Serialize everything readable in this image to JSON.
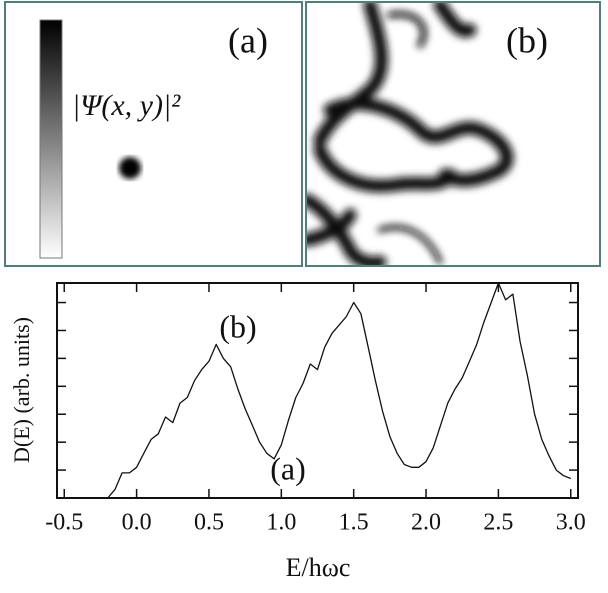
{
  "panels": {
    "a_label": "(a)",
    "b_label": "(b)",
    "colorbar_label": "|Ψ(x, y)|²"
  },
  "chart_data": {
    "type": "line",
    "xlabel": "E/hωc",
    "ylabel": "D(E) (arb. units)",
    "annotations": [
      "(a)",
      "(b)"
    ],
    "x": [
      -0.2,
      -0.15,
      -0.1,
      -0.05,
      0.0,
      0.05,
      0.1,
      0.15,
      0.2,
      0.25,
      0.3,
      0.35,
      0.4,
      0.45,
      0.5,
      0.55,
      0.6,
      0.65,
      0.7,
      0.75,
      0.8,
      0.85,
      0.9,
      0.95,
      1.0,
      1.05,
      1.1,
      1.15,
      1.2,
      1.25,
      1.3,
      1.35,
      1.4,
      1.45,
      1.5,
      1.55,
      1.6,
      1.65,
      1.7,
      1.75,
      1.8,
      1.85,
      1.9,
      1.95,
      2.0,
      2.05,
      2.1,
      2.15,
      2.2,
      2.25,
      2.3,
      2.35,
      2.4,
      2.45,
      2.5,
      2.55,
      2.6,
      2.65,
      2.7,
      2.75,
      2.8,
      2.85,
      2.9,
      2.95,
      3.0
    ],
    "values": [
      0.0,
      0.3,
      0.9,
      0.9,
      1.1,
      1.6,
      2.1,
      2.3,
      2.9,
      2.7,
      3.4,
      3.6,
      4.2,
      4.6,
      4.9,
      5.5,
      5.0,
      4.7,
      3.9,
      3.2,
      2.6,
      2.0,
      1.6,
      1.4,
      1.9,
      2.8,
      3.6,
      4.1,
      4.8,
      4.6,
      5.4,
      5.9,
      6.2,
      6.5,
      7.0,
      6.6,
      5.4,
      4.2,
      3.1,
      2.2,
      1.6,
      1.2,
      1.1,
      1.1,
      1.3,
      1.8,
      2.6,
      3.4,
      3.9,
      4.3,
      4.9,
      5.5,
      6.3,
      7.0,
      7.7,
      7.1,
      7.3,
      5.6,
      4.4,
      3.0,
      2.1,
      1.5,
      1.0,
      0.8,
      0.7
    ],
    "color": "#111111",
    "xlim": [
      -0.55,
      3.05
    ],
    "xticks": [
      {
        "value": -0.5,
        "label": "-0.5"
      },
      {
        "value": 0.0,
        "label": "0.0"
      },
      0.5,
      {
        "value": 1.0,
        "label": "1.0"
      },
      1.5,
      {
        "value": 2.0,
        "label": "2.0"
      },
      2.5,
      {
        "value": 3.0,
        "label": "3.0"
      }
    ],
    "ylim": [
      0,
      7.7
    ],
    "yticks": [
      1,
      2,
      3,
      4,
      5,
      6,
      7
    ]
  }
}
